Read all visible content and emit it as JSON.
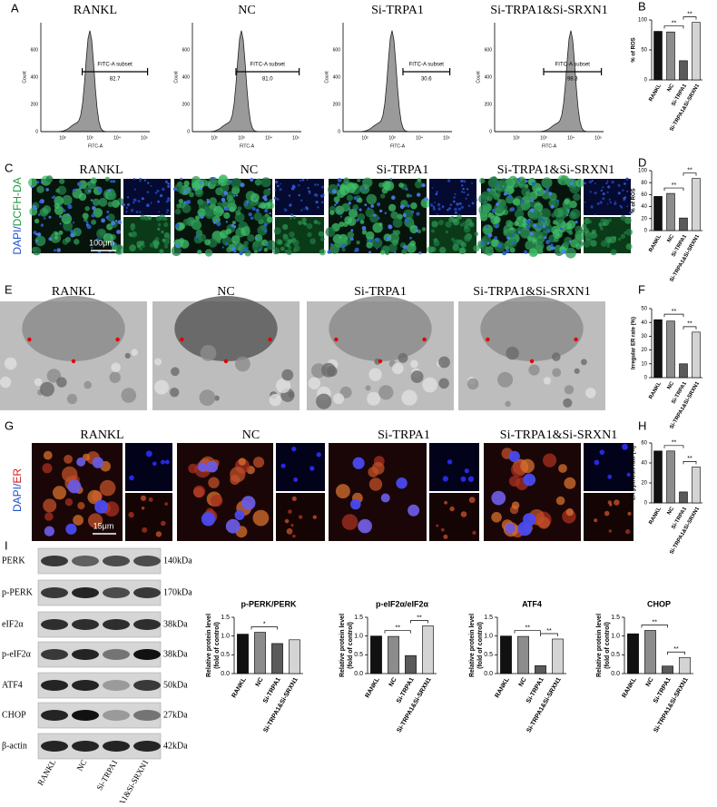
{
  "panel_labels": [
    "A",
    "B",
    "C",
    "D",
    "E",
    "F",
    "G",
    "H",
    "I"
  ],
  "flow": [
    {
      "title": "RANKL",
      "gate_label": "FITC-A subset",
      "gate_value": "82.7",
      "x_label": "FITC-A",
      "y_label": "Count",
      "xticks": [
        "10²",
        "10³",
        "10⁴",
        "10⁵"
      ],
      "yticks": [
        "0",
        "200",
        "400",
        "600"
      ]
    },
    {
      "title": "NC",
      "gate_label": "FITC-A subset",
      "gate_value": "81.0",
      "x_label": "FITC-A",
      "y_label": "Count",
      "xticks": [
        "10²",
        "10³",
        "10⁴",
        "10⁵"
      ],
      "yticks": [
        "0",
        "200",
        "400",
        "600"
      ]
    },
    {
      "title": "Si-TRPA1",
      "gate_label": "FITC-A subset",
      "gate_value": "30.6",
      "x_label": "FITC-A",
      "y_label": "Count",
      "xticks": [
        "10²",
        "10³",
        "10⁴",
        "10⁵"
      ],
      "yticks": [
        "0",
        "200",
        "400",
        "600"
      ]
    },
    {
      "title": "Si-TRPA1&Si-SRXN1",
      "gate_label": "FITC-A subset",
      "gate_value": "98.3",
      "x_label": "FITC-A",
      "y_label": "Count",
      "xticks": [
        "10²",
        "10³",
        "10⁴",
        "10⁵"
      ],
      "yticks": [
        "0",
        "200",
        "400",
        "600"
      ]
    }
  ],
  "dcfh": {
    "stain_labels": [
      "DAPI/",
      "DCFH-DA"
    ],
    "scale_bar": "100μm",
    "titles": [
      "RANKL",
      "NC",
      "Si-TRPA1",
      "Si-TRPA1&Si-SRXN1"
    ]
  },
  "tem": {
    "titles": [
      "RANKL",
      "NC",
      "Si-TRPA1",
      "Si-TRPA1&Si-SRXN1"
    ]
  },
  "er": {
    "stain_labels": [
      "DAPI/",
      "ER"
    ],
    "scale_bar": "15μm",
    "titles": [
      "RANKL",
      "NC",
      "Si-TRPA1",
      "Si-TRPA1&Si-SRXN1"
    ]
  },
  "blot": {
    "proteins": [
      "PERK",
      "p-PERK",
      "eIF2α",
      "p-eIF2α",
      "ATF4",
      "CHOP",
      "β-actin"
    ],
    "sizes": [
      "140kDa",
      "170kDa",
      "38kDa",
      "38kDa",
      "50kDa",
      "27kDa",
      "42kDa"
    ],
    "lanes": [
      "RANKL",
      "NC",
      "Si-TRPA1",
      "Si-TRPA1&Si-SRXN1"
    ]
  },
  "chart_data": [
    {
      "type": "bar",
      "y_label": [
        "% of ROS"
      ],
      "categories": [
        "RANKL",
        "NC",
        "Si-TRPA1",
        "Si-TRPA1&Si-SRXN1"
      ],
      "values": [
        81,
        80,
        32,
        96
      ],
      "colors": [
        "#111111",
        "#8c8c8c",
        "#5a5a5a",
        "#d4d4d4"
      ],
      "ylim": [
        0,
        100
      ],
      "yticks": [
        0,
        50,
        100
      ],
      "annotations": [
        "**",
        "**"
      ]
    },
    {
      "type": "bar",
      "y_label": [
        "% of ROS"
      ],
      "categories": [
        "RANKL",
        "NC",
        "Si-TRPA1",
        "Si-TRPA1&Si-SRXN1"
      ],
      "values": [
        57,
        62,
        21,
        87
      ],
      "colors": [
        "#111111",
        "#8c8c8c",
        "#5a5a5a",
        "#d4d4d4"
      ],
      "ylim": [
        0,
        100
      ],
      "yticks": [
        0,
        20,
        40,
        60,
        80,
        100
      ],
      "annotations": [
        "**",
        "**"
      ]
    },
    {
      "type": "bar",
      "y_label": [
        "Irregular ER rate (%)"
      ],
      "categories": [
        "RANKL",
        "NC",
        "Si-TRPA1",
        "Si-TRPA1&Si-SRXN1"
      ],
      "values": [
        42,
        41,
        10,
        33
      ],
      "colors": [
        "#111111",
        "#8c8c8c",
        "#5a5a5a",
        "#d4d4d4"
      ],
      "ylim": [
        0,
        50
      ],
      "yticks": [
        0,
        10,
        20,
        30,
        40,
        50
      ],
      "annotations": [
        "**",
        "**"
      ]
    },
    {
      "type": "bar",
      "y_label": [
        "ER pyknosis rate (%)"
      ],
      "categories": [
        "RANKL",
        "NC",
        "Si-TRPA1",
        "Si-TRPA1&Si-SRXN1"
      ],
      "values": [
        52,
        52,
        11,
        36
      ],
      "colors": [
        "#111111",
        "#8c8c8c",
        "#5a5a5a",
        "#d4d4d4"
      ],
      "ylim": [
        0,
        60
      ],
      "yticks": [
        0,
        20,
        40,
        60
      ],
      "annotations": [
        "**",
        "**"
      ]
    },
    {
      "type": "bar",
      "title": "p-PERK/PERK",
      "y_label": [
        "Relative protein level",
        "(fold of control)"
      ],
      "categories": [
        "RANKL",
        "NC",
        "Si-TRPA1",
        "Si-TRPA1&Si-SRXN1"
      ],
      "values": [
        1.05,
        1.1,
        0.8,
        0.9
      ],
      "colors": [
        "#111111",
        "#8c8c8c",
        "#5a5a5a",
        "#d4d4d4"
      ],
      "ylim": [
        0,
        1.5
      ],
      "yticks": [
        {
          "value": 0,
          "label": "0.0"
        },
        {
          "value": 0.5,
          "label": "0.5"
        },
        {
          "value": 1,
          "label": "1.0"
        },
        {
          "value": 1.5,
          "label": "1.5"
        }
      ],
      "annotations": [
        "*"
      ]
    },
    {
      "type": "bar",
      "title": "p-eIF2α/eIF2α",
      "y_label": [
        "Relative protein level",
        "(fold of control)"
      ],
      "categories": [
        "RANKL",
        "NC",
        "Si-TRPA1",
        "Si-TRPA1&Si-SRXN1"
      ],
      "values": [
        1.0,
        0.99,
        0.48,
        1.27
      ],
      "colors": [
        "#111111",
        "#8c8c8c",
        "#5a5a5a",
        "#d4d4d4"
      ],
      "ylim": [
        0,
        1.5
      ],
      "yticks": [
        {
          "value": 0,
          "label": "0.0"
        },
        {
          "value": 0.5,
          "label": "0.5"
        },
        {
          "value": 1,
          "label": "1.0"
        },
        {
          "value": 1.5,
          "label": "1.5"
        }
      ],
      "annotations": [
        "**",
        "**"
      ]
    },
    {
      "type": "bar",
      "title": "ATF4",
      "y_label": [
        "Relative protein level",
        "(fold of control)"
      ],
      "categories": [
        "RANKL",
        "NC",
        "Si-TRPA1",
        "Si-TRPA1&Si-SRXN1"
      ],
      "values": [
        1.0,
        0.99,
        0.21,
        0.92
      ],
      "colors": [
        "#111111",
        "#8c8c8c",
        "#5a5a5a",
        "#d4d4d4"
      ],
      "ylim": [
        0,
        1.5
      ],
      "yticks": [
        {
          "value": 0,
          "label": "0.0"
        },
        {
          "value": 0.5,
          "label": "0.5"
        },
        {
          "value": 1,
          "label": "1.0"
        },
        {
          "value": 1.5,
          "label": "1.5"
        }
      ],
      "annotations": [
        "**",
        "**"
      ]
    },
    {
      "type": "bar",
      "title": "CHOP",
      "y_label": [
        "Relative protein level",
        "(fold of control)"
      ],
      "categories": [
        "RANKL",
        "NC",
        "Si-TRPA1",
        "Si-TRPA1&Si-SRXN1"
      ],
      "values": [
        1.06,
        1.15,
        0.2,
        0.43
      ],
      "colors": [
        "#111111",
        "#8c8c8c",
        "#5a5a5a",
        "#d4d4d4"
      ],
      "ylim": [
        0,
        1.5
      ],
      "yticks": [
        {
          "value": 0,
          "label": "0.0"
        },
        {
          "value": 0.5,
          "label": "0.5"
        },
        {
          "value": 1,
          "label": "1.0"
        },
        {
          "value": 1.5,
          "label": "1.5"
        }
      ],
      "annotations": [
        "**",
        "**"
      ]
    }
  ]
}
